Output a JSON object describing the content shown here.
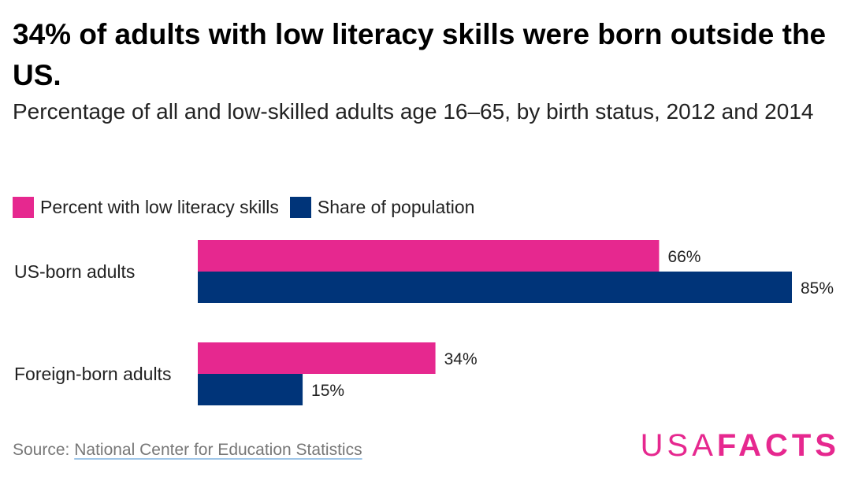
{
  "header": {
    "title": "34% of adults with low literacy skills were born outside the US.",
    "subtitle": "Percentage of all and low-skilled adults age 16–65, by birth status, 2012 and 2014"
  },
  "footer": {
    "source_prefix": "Source: ",
    "source_link": "National Center for Education Statistics"
  },
  "logo": {
    "part1": "USA",
    "part2": "FACTS"
  },
  "chart_data": {
    "type": "bar",
    "orientation": "horizontal",
    "title": "34% of adults with low literacy skills were born outside the US.",
    "subtitle": "Percentage of all and low-skilled adults age 16–65, by birth status, 2012 and 2014",
    "categories": [
      "US-born adults",
      "Foreign-born adults"
    ],
    "series": [
      {
        "name": "Percent with low literacy skills",
        "color": "#e6288f",
        "values": [
          66,
          34
        ],
        "labels": [
          "66%",
          "34%"
        ]
      },
      {
        "name": "Share of population",
        "color": "#003479",
        "values": [
          85,
          15
        ],
        "labels": [
          "85%",
          "15%"
        ]
      }
    ],
    "xlim": [
      0,
      85
    ],
    "grid": false,
    "legend_position": "top-left"
  }
}
